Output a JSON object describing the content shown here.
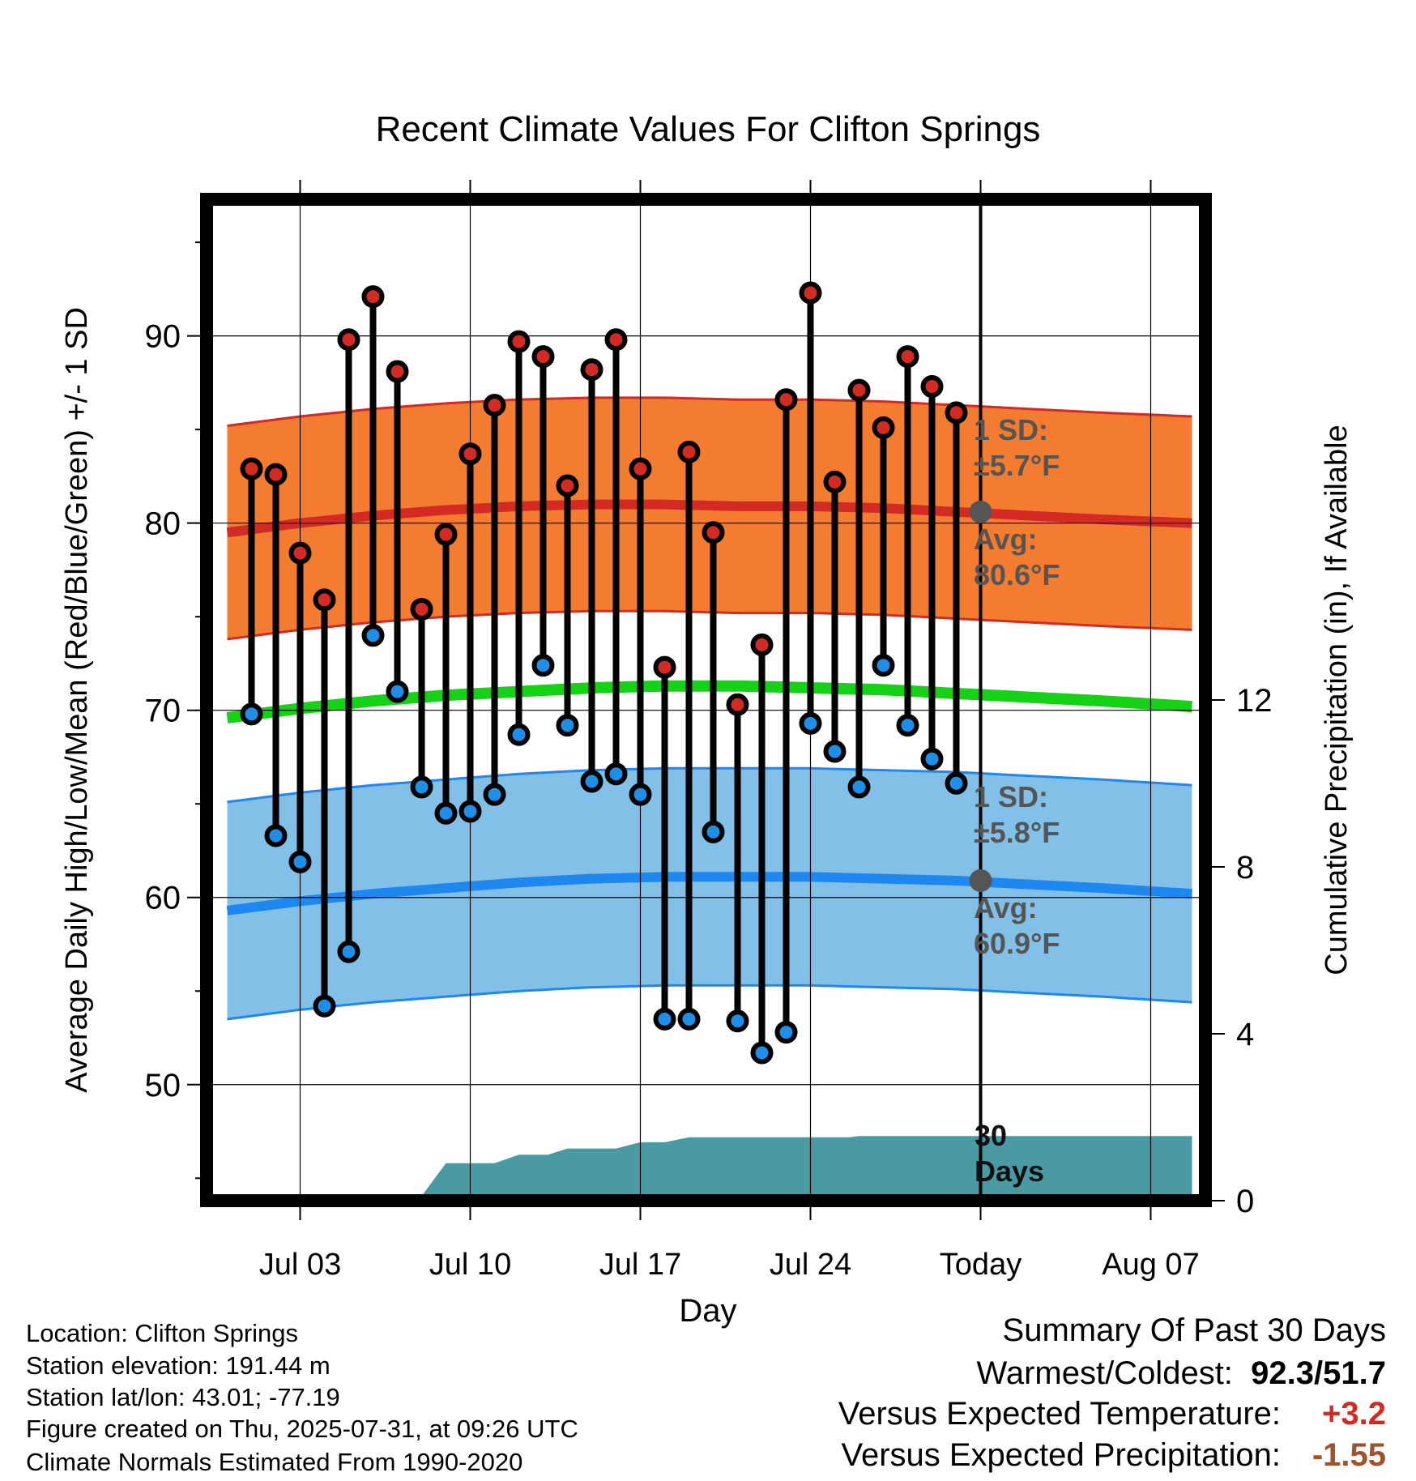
{
  "chart_data": {
    "type": "line",
    "title": "Recent Climate Values For Clifton Springs",
    "xlabel": "Day",
    "ylabel": "Average Daily High/Low/Mean (Red/Blue/Green) +/- 1 SD",
    "y2label": "Cumulative Precipitation (in), If Available",
    "ylim": [
      43.8,
      97.3
    ],
    "y2lim": [
      0,
      24
    ],
    "y_ticks": [
      50,
      60,
      70,
      80,
      90
    ],
    "y_minor_ticks": [
      45,
      55,
      65,
      75,
      85,
      95
    ],
    "y2_ticks": [
      0,
      4,
      8,
      12
    ],
    "xlim": [
      -3.85,
      37.25
    ],
    "x_ticks": [
      {
        "day": 0,
        "label": "Jul 03"
      },
      {
        "day": 7,
        "label": "Jul 10"
      },
      {
        "day": 14,
        "label": "Jul 17"
      },
      {
        "day": 21,
        "label": "Jul 24"
      },
      {
        "day": 28,
        "label": "Today"
      },
      {
        "day": 35,
        "label": "Aug 07"
      }
    ],
    "normals_x": [
      -3,
      0,
      3,
      6,
      9,
      12,
      15,
      18,
      21,
      24,
      27,
      30,
      33,
      36.7
    ],
    "normal_high_mean": [
      79.5,
      80.0,
      80.4,
      80.7,
      80.9,
      81.0,
      81.0,
      80.9,
      80.9,
      80.8,
      80.6,
      80.4,
      80.2,
      80.0
    ],
    "normal_high_sd": 5.7,
    "normal_low_mean": [
      59.3,
      59.8,
      60.2,
      60.5,
      60.8,
      61.0,
      61.1,
      61.1,
      61.1,
      61.0,
      60.9,
      60.7,
      60.5,
      60.2
    ],
    "normal_low_sd": 5.8,
    "normal_mean": [
      69.6,
      70.1,
      70.5,
      70.8,
      71.0,
      71.2,
      71.3,
      71.3,
      71.2,
      71.1,
      70.9,
      70.7,
      70.5,
      70.2
    ],
    "days": [
      -2,
      -1,
      0,
      1,
      2,
      3,
      4,
      5,
      6,
      7,
      8,
      9,
      10,
      11,
      12,
      13,
      14,
      15,
      16,
      17,
      18,
      19,
      20,
      21,
      22,
      23,
      24,
      25,
      26,
      27
    ],
    "highs": [
      82.9,
      82.6,
      78.4,
      75.9,
      89.8,
      92.1,
      88.1,
      75.4,
      79.4,
      83.7,
      86.3,
      89.7,
      88.9,
      82.0,
      88.2,
      89.8,
      82.9,
      72.3,
      83.8,
      79.5,
      70.3,
      73.5,
      86.6,
      92.3,
      82.2,
      87.1,
      85.1,
      88.9,
      87.3,
      85.9
    ],
    "lows": [
      69.8,
      63.3,
      61.9,
      54.2,
      57.1,
      74.0,
      71.0,
      65.9,
      64.5,
      64.6,
      65.5,
      68.7,
      72.4,
      69.2,
      66.2,
      66.6,
      65.5,
      53.5,
      53.5,
      63.5,
      53.4,
      51.7,
      52.8,
      69.3,
      67.8,
      65.9,
      72.4,
      69.2,
      67.4,
      66.1
    ],
    "precip_days": [
      -3.2,
      -2.2,
      -1,
      0.3,
      1,
      2.7,
      4,
      5,
      6,
      7,
      8,
      9,
      10.2,
      11,
      12,
      13,
      14,
      15,
      16,
      17,
      18,
      19,
      20,
      21,
      22,
      22.6,
      23,
      24,
      25,
      26,
      27,
      28,
      36.7
    ],
    "precip": [
      0,
      0.03,
      0.05,
      0.08,
      0.1,
      0.11,
      0.11,
      0.11,
      0.9,
      0.9,
      0.9,
      1.1,
      1.1,
      1.25,
      1.25,
      1.25,
      1.4,
      1.4,
      1.52,
      1.52,
      1.52,
      1.52,
      1.52,
      1.52,
      1.52,
      1.52,
      1.55,
      1.55,
      1.55,
      1.55,
      1.55,
      1.55,
      1.55
    ],
    "today_marker": {
      "day": 28,
      "label": "Today"
    },
    "annotations": {
      "high_sd": [
        "1 SD:",
        "±5.7°F"
      ],
      "high_avg": [
        "Avg:",
        "80.6°F"
      ],
      "low_sd": [
        "1 SD:",
        "±5.8°F"
      ],
      "low_avg": [
        "Avg:",
        "60.9°F"
      ],
      "days": [
        "30",
        "Days"
      ]
    },
    "today_high_avg": 80.6,
    "today_low_avg": 60.9,
    "colors": {
      "high_band": "#f47c30",
      "high_line": "#d42a24",
      "low_band": "#82c0e8",
      "low_line": "#1e88f0",
      "mean_line": "#16d216",
      "precip_fill": "#4a9aa4",
      "high_marker": "#d42a24",
      "low_marker": "#1e8fe8",
      "avg_marker": "#555555",
      "annotation_text": "#555555",
      "positive_temp": "#d42a24",
      "precip_departure": "#a0522d"
    }
  },
  "footer": {
    "location": "Location: Clifton Springs",
    "elevation": "Station elevation: 191.44 m",
    "latlon": "Station lat/lon: 43.01; -77.19",
    "created": "Figure created on Thu, 2025-07-31, at 09:26 UTC",
    "normals": "Climate Normals Estimated From 1990-2020"
  },
  "summary": {
    "title": "Summary Of Past 30 Days",
    "warmest_coldest_label": "Warmest/Coldest:",
    "warmest": "92.3",
    "slash": "/",
    "coldest": "51.7",
    "temp_label": "Versus Expected Temperature:",
    "temp_value": "+3.2",
    "precip_label": "Versus Expected Precipitation:",
    "precip_value": "-1.55"
  }
}
